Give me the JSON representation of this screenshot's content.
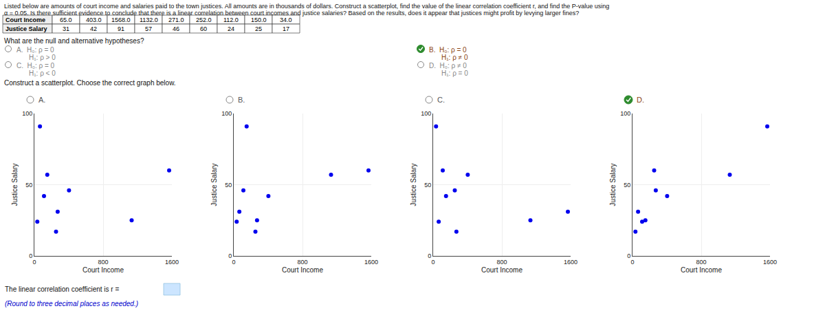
{
  "title": [
    "Listed below are amounts of court income and salaries paid to the town justices. All amounts are in thousands of dollars. Construct a scatterplot, find the value of the linear correlation coefficient r, and find the P-value using",
    "α = 0.05. Is there sufficient evidence to conclude that there is a linear correlation between court incomes and justice salaries? Based on the results, does it appear that justices might profit by levying larger fines?"
  ],
  "table": {
    "rows": [
      {
        "label": "Court Income",
        "values": [
          "65.0",
          "403.0",
          "1568.0",
          "1132.0",
          "271.0",
          "252.0",
          "112.0",
          "150.0",
          "34.0"
        ]
      },
      {
        "label": "Justice Salary",
        "values": [
          "31",
          "42",
          "91",
          "57",
          "46",
          "60",
          "24",
          "25",
          "17"
        ]
      }
    ]
  },
  "annotations": {
    "hyp_question": "What are the null and alternative hypotheses?",
    "hyp_options": [
      {
        "label": "A.",
        "lines": [
          "H₀: ρ = 0",
          "H₁: ρ > 0"
        ],
        "selected": false
      },
      {
        "label": "B.",
        "lines": [
          "H₀: ρ = 0",
          "H₁: ρ ≠ 0"
        ],
        "selected": true
      },
      {
        "label": "C.",
        "lines": [
          "H₀: ρ = 0",
          "H₁: ρ < 0"
        ],
        "selected": false
      },
      {
        "label": "D.",
        "lines": [
          "H₀: ρ ≠ 0",
          "H₁: ρ = 0"
        ],
        "selected": false
      }
    ],
    "scatter_question": "Construct a scatterplot. Choose the correct graph below.",
    "answer_prompt": "The linear correlation coefficient is r =",
    "answer_hint": {
      "text": "(Round to three decimal places as needed.)",
      "color": "#0000cc"
    }
  },
  "selected_color": "#8B4513",
  "selected_mark_color": "#2e8b2e",
  "chart_data": [
    {
      "type": "scatter",
      "title": "A.",
      "x_label": "Court Income",
      "y_label": "Justice Salary",
      "x": [
        65.0,
        403.0,
        1568.0,
        1132.0,
        271.0,
        252.0,
        112.0,
        150.0,
        34.0
      ],
      "values": [
        91,
        46,
        60,
        25,
        31,
        17,
        42,
        57,
        24
      ],
      "color": "#0000ee",
      "xlim": [
        0,
        1600
      ],
      "ylim": [
        0,
        100
      ],
      "xticks": [
        0,
        800,
        1600
      ],
      "yticks": [
        0,
        50,
        100
      ],
      "grid": true,
      "selected": false
    },
    {
      "type": "scatter",
      "title": "B.",
      "x_label": "Court Income",
      "y_label": "Justice Salary",
      "x": [
        65.0,
        403.0,
        1568.0,
        1132.0,
        271.0,
        252.0,
        112.0,
        150.0,
        34.0
      ],
      "values": [
        31,
        42,
        60,
        57,
        25,
        17,
        46,
        91,
        24
      ],
      "color": "#0000ee",
      "xlim": [
        0,
        1600
      ],
      "ylim": [
        0,
        100
      ],
      "xticks": [
        0,
        800,
        1600
      ],
      "yticks": [
        0,
        50,
        100
      ],
      "grid": true,
      "selected": false
    },
    {
      "type": "scatter",
      "title": "C.",
      "x_label": "Court Income",
      "y_label": "Justice Salary",
      "x": [
        65.0,
        403.0,
        1568.0,
        1132.0,
        271.0,
        252.0,
        112.0,
        150.0,
        34.0
      ],
      "values": [
        24,
        57,
        31,
        25,
        17,
        46,
        60,
        42,
        91
      ],
      "color": "#0000ee",
      "xlim": [
        0,
        1600
      ],
      "ylim": [
        0,
        100
      ],
      "xticks": [
        0,
        800,
        1600
      ],
      "yticks": [
        0,
        50,
        100
      ],
      "grid": true,
      "selected": false
    },
    {
      "type": "scatter",
      "title": "D.",
      "x_label": "Court Income",
      "y_label": "Justice Salary",
      "x": [
        65.0,
        403.0,
        1568.0,
        1132.0,
        271.0,
        252.0,
        112.0,
        150.0,
        34.0
      ],
      "values": [
        31,
        42,
        91,
        57,
        46,
        60,
        24,
        25,
        17
      ],
      "color": "#0000ee",
      "xlim": [
        0,
        1600
      ],
      "ylim": [
        0,
        100
      ],
      "xticks": [
        0,
        800,
        1600
      ],
      "yticks": [
        0,
        50,
        100
      ],
      "grid": true,
      "selected": true
    }
  ]
}
